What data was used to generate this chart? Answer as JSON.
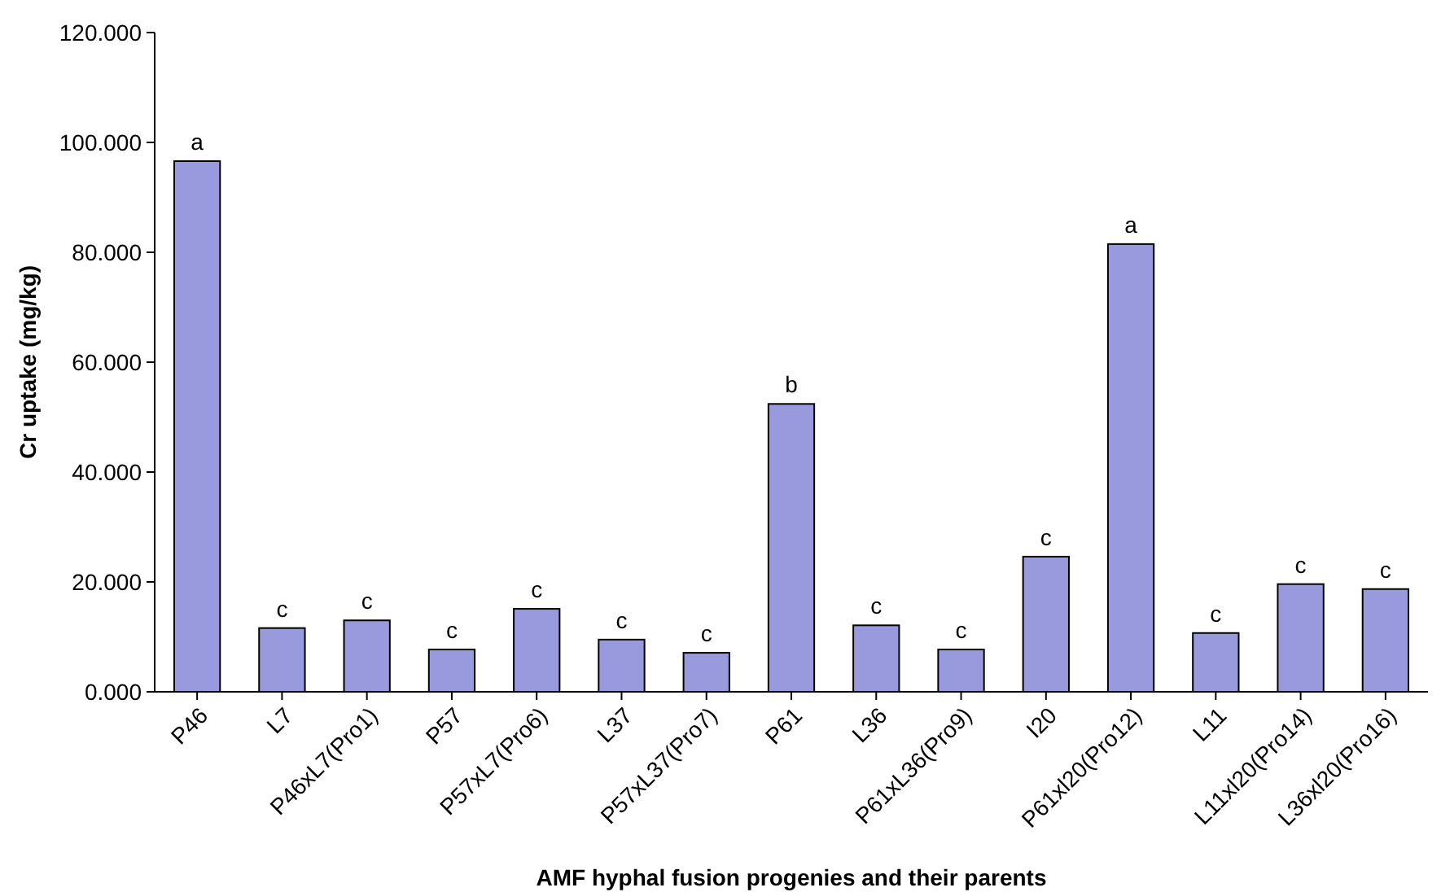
{
  "chart_data": {
    "type": "bar",
    "xlabel": "AMF hyphal fusion progenies and their parents",
    "ylabel": "Cr uptake (mg/kg)",
    "categories": [
      "P46",
      "L7",
      "P46xL7(Pro1)",
      "P57",
      "P57xL7(Pro6)",
      "L37",
      "P57xL37(Pro7)",
      "P61",
      "L36",
      "P61xL36(Pro9)",
      "I20",
      "P61xl20(Pro12)",
      "L11",
      "L11xl20(Pro14)",
      "L36xl20(Pro16)"
    ],
    "values": [
      96.6,
      11.6,
      13.0,
      7.7,
      15.1,
      9.5,
      7.1,
      52.4,
      12.1,
      7.7,
      24.6,
      81.5,
      10.7,
      19.6,
      18.7
    ],
    "color": "#9999dd",
    "ylim": [
      0,
      120
    ],
    "yticks": [
      {
        "value": 0,
        "label": "0.000"
      },
      {
        "value": 20,
        "label": "20.000"
      },
      {
        "value": 40,
        "label": "40.000"
      },
      {
        "value": 60,
        "label": "60.000"
      },
      {
        "value": 80,
        "label": "80.000"
      },
      {
        "value": 100,
        "label": "100.000"
      },
      {
        "value": 120,
        "label": "120.000"
      }
    ],
    "grid": false,
    "annotations": [
      {
        "text": "a",
        "x": "P46",
        "y": 96.6
      },
      {
        "text": "c",
        "x": "L7",
        "y": 11.6
      },
      {
        "text": "c",
        "x": "P46xL7(Pro1)",
        "y": 13.0
      },
      {
        "text": "c",
        "x": "P57",
        "y": 7.7
      },
      {
        "text": "c",
        "x": "P57xL7(Pro6)",
        "y": 15.1
      },
      {
        "text": "c",
        "x": "L37",
        "y": 9.5
      },
      {
        "text": "c",
        "x": "P57xL37(Pro7)",
        "y": 7.1
      },
      {
        "text": "b",
        "x": "P61",
        "y": 52.4
      },
      {
        "text": "c",
        "x": "L36",
        "y": 12.1
      },
      {
        "text": "c",
        "x": "P61xL36(Pro9)",
        "y": 7.7
      },
      {
        "text": "c",
        "x": "I20",
        "y": 24.6
      },
      {
        "text": "a",
        "x": "P61xl20(Pro12)",
        "y": 81.5
      },
      {
        "text": "c",
        "x": "L11",
        "y": 10.7
      },
      {
        "text": "c",
        "x": "L11xl20(Pro14)",
        "y": 19.6
      },
      {
        "text": "c",
        "x": "L36xl20(Pro16)",
        "y": 18.7
      }
    ]
  }
}
